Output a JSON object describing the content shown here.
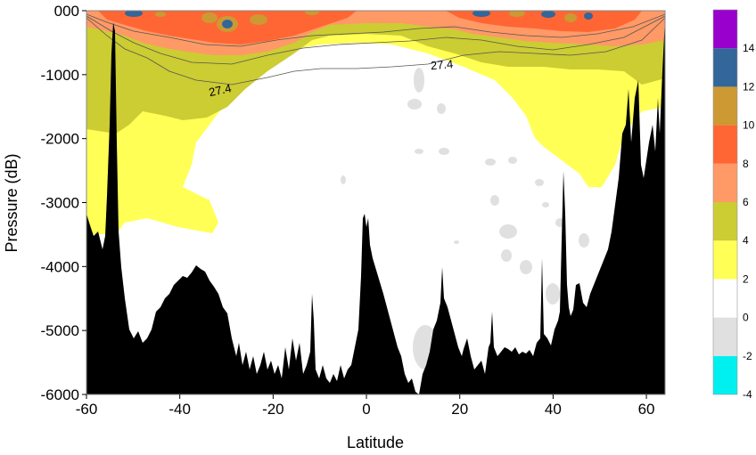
{
  "chart_data": {
    "type": "contour-section",
    "xlabel": "Latitude",
    "ylabel": "Pressure (dB)",
    "xlim": [
      -60,
      64
    ],
    "ylim": [
      -6000,
      0
    ],
    "x_ticks": [
      -60,
      -40,
      -20,
      0,
      20,
      40,
      60
    ],
    "y_ticks": [
      0,
      -1000,
      -2000,
      -3000,
      -4000,
      -5000,
      -6000
    ],
    "y_tick_labels": [
      "000",
      "-1000",
      "-2000",
      "-3000",
      "-4000",
      "-5000",
      "-6000"
    ],
    "grid": false,
    "colorbar": {
      "placement": "right",
      "levels": [
        -4,
        -2,
        0,
        2,
        4,
        6,
        8,
        10,
        12,
        14
      ],
      "colors": [
        "#00f0f0",
        "#e0e0e0",
        "#ffffff",
        "#ffff55",
        "#cccc33",
        "#ff9966",
        "#ff6633",
        "#cc9933",
        "#336699",
        "#9900cc"
      ]
    },
    "contour_lines": [
      {
        "level": 27.4,
        "label": "27.4"
      }
    ],
    "bathymetry_color": "#000000",
    "notes_visible": []
  }
}
